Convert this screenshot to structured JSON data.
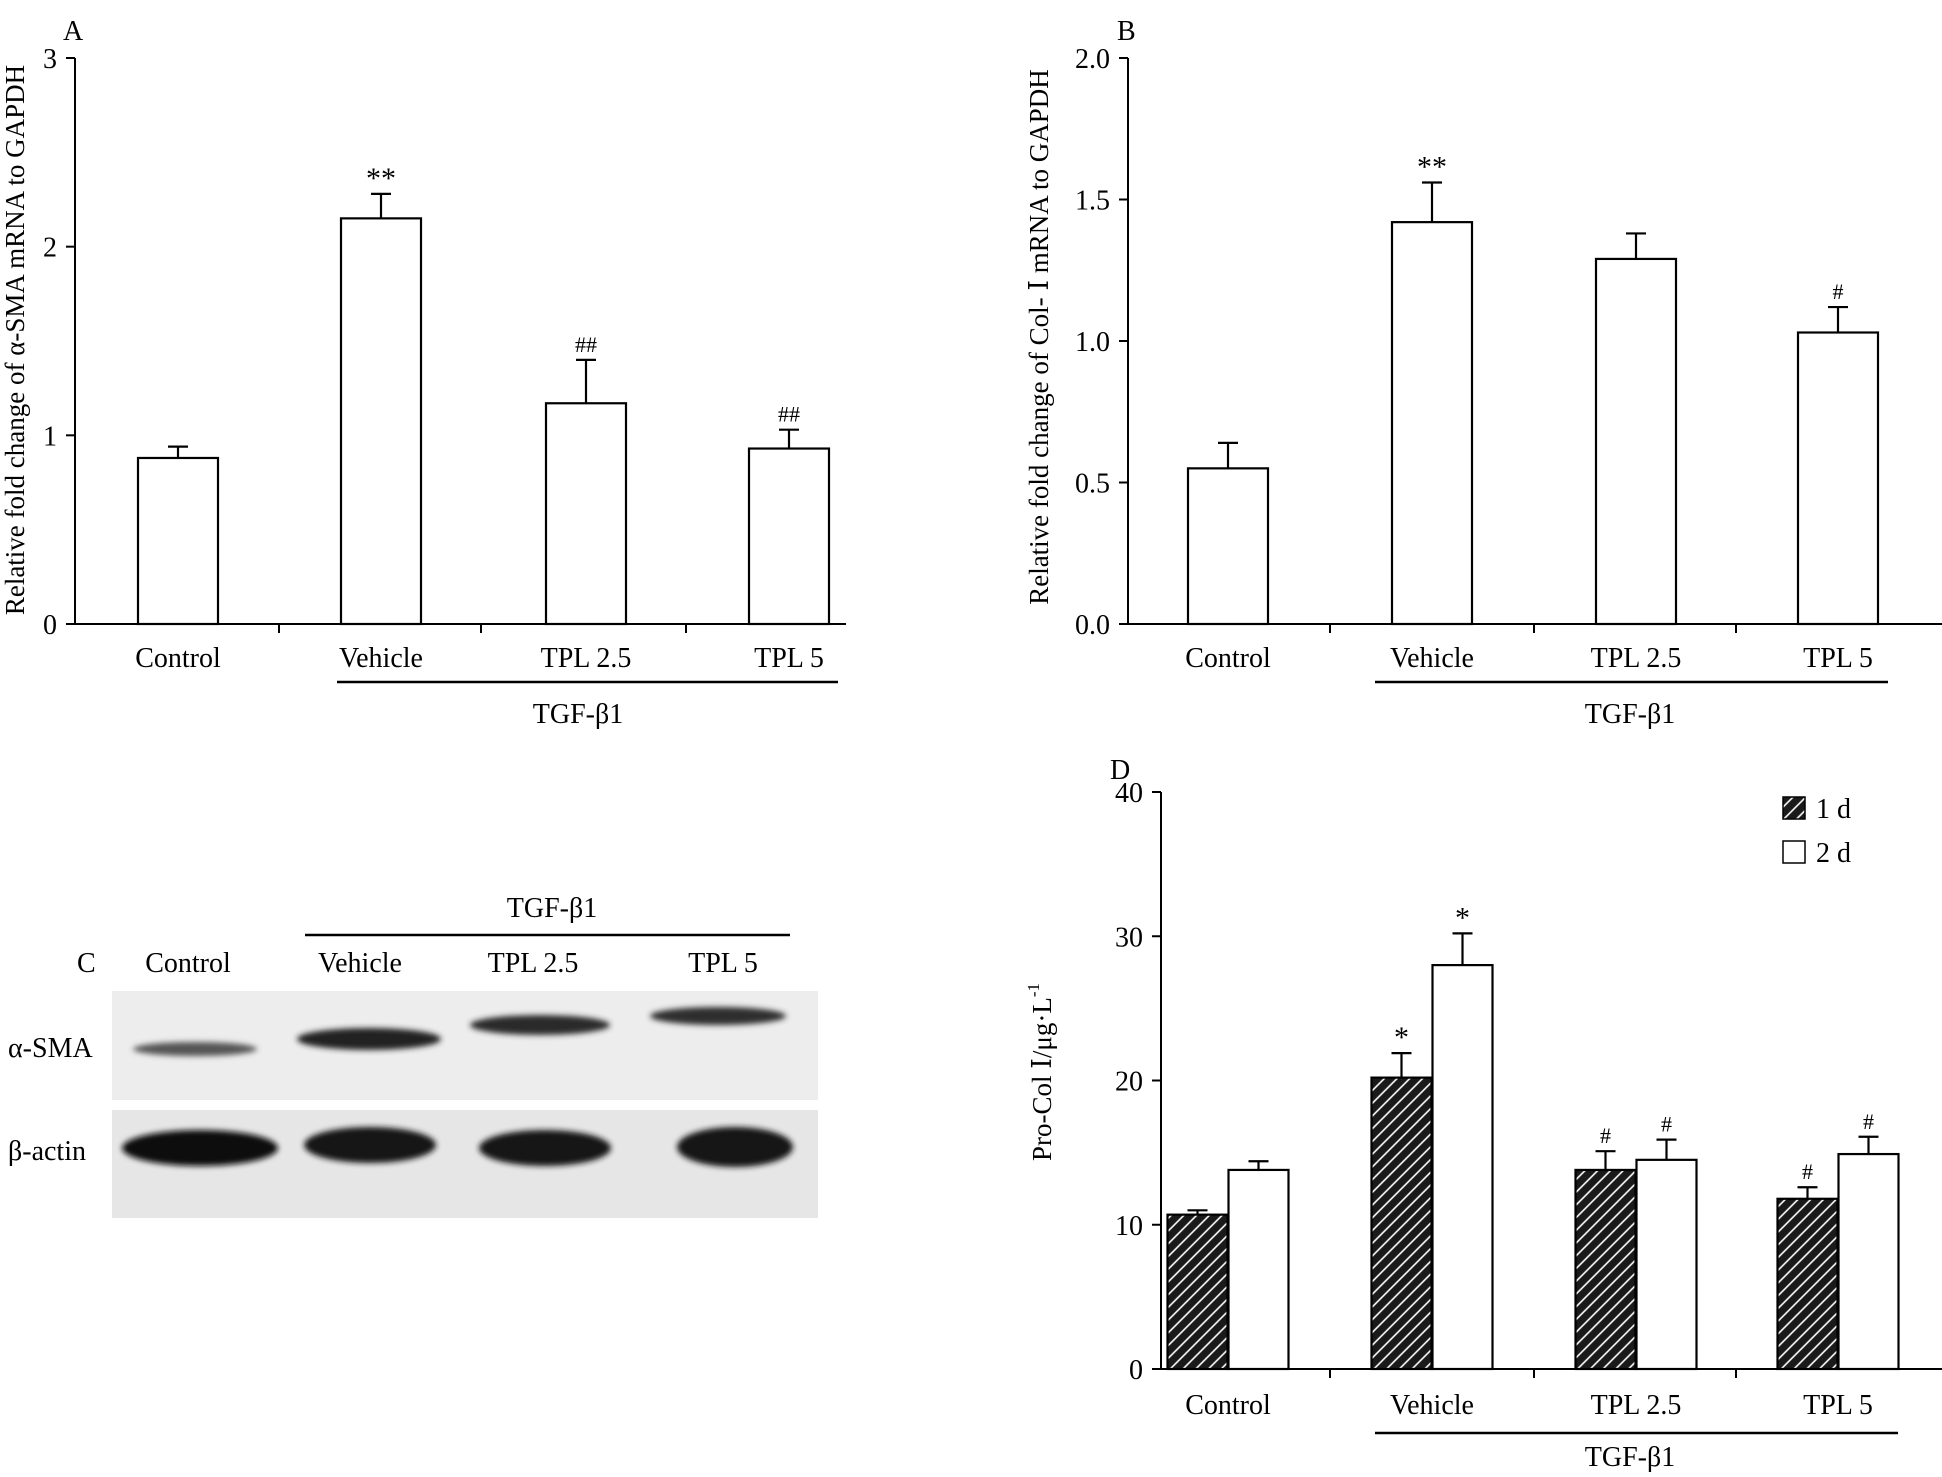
{
  "chart_data": [
    {
      "panel": "A",
      "type": "bar",
      "ylabel": "Relative fold change of α-SMA mRNA to GAPDH",
      "ylim": [
        0,
        3
      ],
      "yticks": [
        "0",
        "1",
        "2",
        "3"
      ],
      "categories": [
        "Control",
        "Vehicle",
        "TPL 2.5",
        "TPL 5"
      ],
      "group_label": "TGF-β1",
      "values": [
        0.88,
        2.15,
        1.17,
        0.93
      ],
      "errors": [
        0.06,
        0.13,
        0.23,
        0.1
      ],
      "annotations": [
        "",
        "**",
        "##",
        "##"
      ]
    },
    {
      "panel": "B",
      "type": "bar",
      "ylabel": "Relative fold change of Col- Ⅰ mRNA to GAPDH",
      "ylim": [
        0,
        2
      ],
      "yticks": [
        "0.0",
        "0.5",
        "1.0",
        "1.5",
        "2.0"
      ],
      "categories": [
        "Control",
        "Vehicle",
        "TPL 2.5",
        "TPL 5"
      ],
      "group_label": "TGF-β1",
      "values": [
        0.55,
        1.42,
        1.29,
        1.03
      ],
      "errors": [
        0.09,
        0.14,
        0.09,
        0.09
      ],
      "annotations": [
        "",
        "**",
        "",
        "#"
      ]
    },
    {
      "panel": "D",
      "type": "bar",
      "ylabel": "Pro-Col Ⅰ/μg·L",
      "ylabel_sup": "-1",
      "ylim": [
        0,
        40
      ],
      "yticks": [
        "0",
        "10",
        "20",
        "30",
        "40"
      ],
      "categories": [
        "Control",
        "Vehicle",
        "TPL 2.5",
        "TPL 5"
      ],
      "group_label": "TGF-β1",
      "legend_position": "top-right",
      "series": [
        {
          "name": "1 d",
          "values": [
            10.7,
            20.2,
            13.8,
            11.8
          ],
          "errors": [
            0.3,
            1.7,
            1.3,
            0.8
          ],
          "annotations": [
            "",
            "*",
            "#",
            "#"
          ]
        },
        {
          "name": "2 d",
          "values": [
            13.8,
            28.0,
            14.5,
            14.9
          ],
          "errors": [
            0.6,
            2.2,
            1.4,
            1.2
          ],
          "annotations": [
            "",
            "*",
            "#",
            "#"
          ]
        }
      ]
    }
  ],
  "panels": {
    "a": "A",
    "b": "B",
    "c": "C",
    "d": "D"
  },
  "blot": {
    "group_label": "TGF-β1",
    "lanes": [
      "Control",
      "Vehicle",
      "TPL 2.5",
      "TPL 5"
    ],
    "rows": [
      "α-SMA",
      "β-actin"
    ]
  }
}
